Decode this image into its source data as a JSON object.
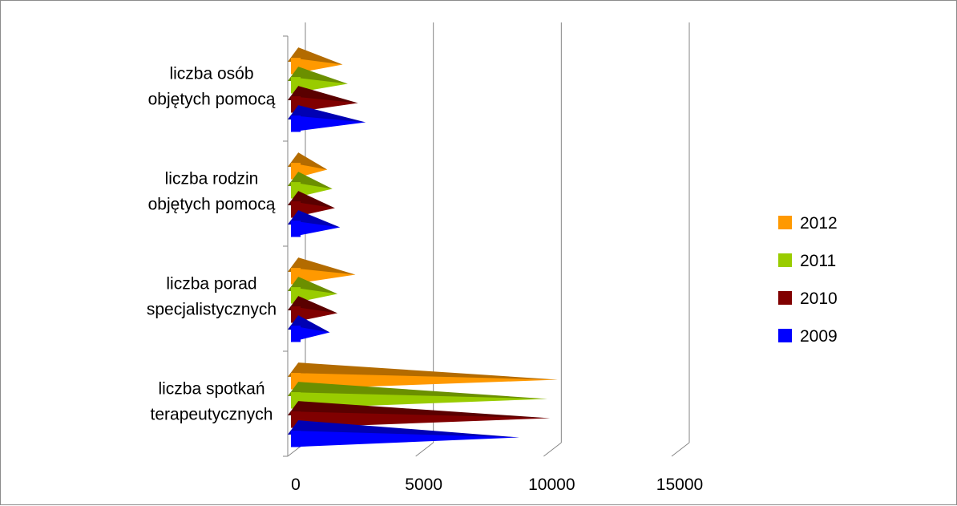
{
  "chart_data": {
    "type": "bar",
    "orientation": "horizontal",
    "style": "3d-cone",
    "categories": [
      [
        "liczba spotkań",
        "terapeutycznych"
      ],
      [
        "liczba porad",
        "specjalistycznych"
      ],
      [
        "liczba rodzin",
        "objętych pomocą"
      ],
      [
        "liczba osób",
        "objętych pomocą"
      ]
    ],
    "series": [
      {
        "name": "2009",
        "color": "#0000ff",
        "values": [
          8700,
          1300,
          1700,
          2700
        ]
      },
      {
        "name": "2010",
        "color": "#800000",
        "values": [
          9900,
          1600,
          1500,
          2400
        ]
      },
      {
        "name": "2011",
        "color": "#99cc00",
        "values": [
          9800,
          1600,
          1400,
          2000
        ]
      },
      {
        "name": "2012",
        "color": "#ff9900",
        "values": [
          10200,
          2300,
          1200,
          1800
        ]
      }
    ],
    "xticks": [
      "0",
      "5000",
      "10000",
      "15000"
    ],
    "xlim": [
      0,
      15000
    ],
    "grid": "vertical major gridlines",
    "legend_position": "right",
    "legend_order": [
      "2012",
      "2011",
      "2010",
      "2009"
    ],
    "title": "",
    "xlabel": "",
    "ylabel": ""
  }
}
